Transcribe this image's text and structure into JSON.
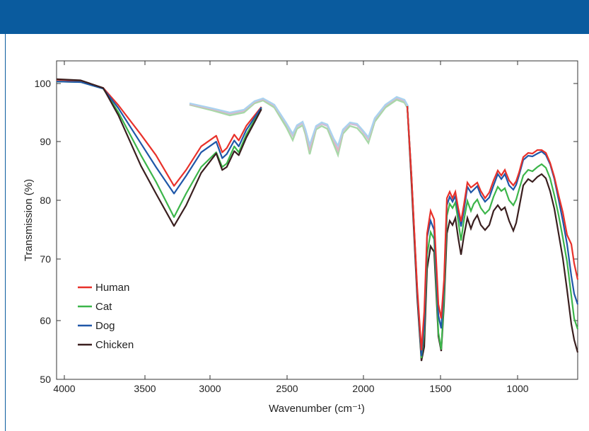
{
  "colors": {
    "header": "#0a5b9e"
  },
  "chart_data": {
    "type": "line",
    "title": "",
    "xlabel": "Wavenumber (cm⁻¹)",
    "ylabel": "Transmission (%)",
    "xlim": [
      4060,
      600
    ],
    "ylim": [
      50,
      104
    ],
    "x_ticks": [
      4000,
      3500,
      3000,
      2500,
      2000,
      1500,
      1000
    ],
    "x_tick_labels": [
      "4000",
      "3500",
      "3000",
      "2500",
      "2000",
      "1500",
      "1000"
    ],
    "y_ticks": [
      50,
      60,
      70,
      80,
      90,
      100
    ],
    "y_tick_labels": [
      "50",
      "60",
      "70",
      "80",
      "90",
      "100"
    ],
    "legend_position": "bottom-left",
    "series": [
      {
        "name": "Human",
        "color": "#e8312a",
        "x": [
          4060,
          3900,
          3750,
          3650,
          3500,
          3400,
          3280,
          3200,
          3100,
          3000,
          2960,
          2930,
          2880,
          2850,
          2800,
          2700
        ],
        "y": [
          100.8,
          100.6,
          99.4,
          96.5,
          91.5,
          88,
          82.8,
          85.5,
          89.5,
          91.3,
          88.5,
          89.2,
          91.5,
          90.5,
          93,
          96.2
        ]
      },
      {
        "name": "Cat",
        "color": "#3cb54a",
        "x": [
          4060,
          3900,
          3750,
          3650,
          3500,
          3400,
          3280,
          3200,
          3100,
          3000,
          2960,
          2930,
          2880,
          2850,
          2800,
          2700
        ],
        "y": [
          100.5,
          100.4,
          99.3,
          95.3,
          88,
          83.5,
          77.5,
          81.5,
          86,
          88.5,
          86,
          86.6,
          89.5,
          88.5,
          91.5,
          96
        ]
      },
      {
        "name": "Dog",
        "color": "#1f57a8",
        "x": [
          4060,
          3900,
          3750,
          3650,
          3500,
          3400,
          3280,
          3200,
          3100,
          3000,
          2960,
          2930,
          2880,
          2850,
          2800,
          2700
        ],
        "y": [
          100.5,
          100.4,
          99.3,
          96,
          90,
          86,
          81.5,
          84.5,
          88.5,
          90.3,
          87.5,
          88.2,
          90.5,
          89.5,
          92.3,
          96.1
        ]
      },
      {
        "name": "Chicken",
        "color": "#3a1f1f",
        "x": [
          4060,
          3900,
          3750,
          3650,
          3500,
          3400,
          3280,
          3200,
          3100,
          3000,
          2960,
          2930,
          2880,
          2850,
          2800,
          2700
        ],
        "y": [
          100.9,
          100.7,
          99.4,
          94.8,
          86.2,
          81.5,
          76,
          79.5,
          85,
          88.3,
          85.5,
          86,
          88.7,
          88,
          91,
          95.8
        ]
      }
    ]
  }
}
